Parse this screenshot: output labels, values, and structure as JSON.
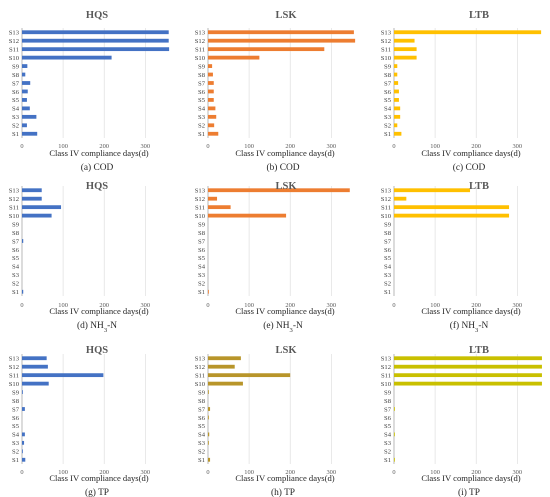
{
  "chart_data": [
    {
      "type": "bar",
      "orientation": "horizontal",
      "title": "HQS",
      "caption": "(a) COD",
      "xlabel": "Class IV compliance days(d)",
      "xlim": [
        0,
        365
      ],
      "xticks": [
        0,
        100,
        200,
        300
      ],
      "grid": true,
      "color": "#4472C4",
      "categories": [
        "S1",
        "S2",
        "S3",
        "S4",
        "S5",
        "S6",
        "S7",
        "S8",
        "S9",
        "S10",
        "S11",
        "S12",
        "S13"
      ],
      "values": [
        37,
        12,
        35,
        19,
        12,
        14,
        20,
        8,
        13,
        218,
        358,
        357,
        357
      ]
    },
    {
      "type": "bar",
      "orientation": "horizontal",
      "title": "LSK",
      "caption": "(b) COD",
      "xlabel": "Class IV compliance days(d)",
      "xlim": [
        0,
        365
      ],
      "xticks": [
        0,
        100,
        200,
        300
      ],
      "grid": true,
      "color": "#ED7D31",
      "categories": [
        "S1",
        "S2",
        "S3",
        "S4",
        "S5",
        "S6",
        "S7",
        "S8",
        "S9",
        "S10",
        "S11",
        "S12",
        "S13"
      ],
      "values": [
        25,
        15,
        20,
        18,
        14,
        14,
        14,
        12,
        10,
        125,
        283,
        358,
        355
      ]
    },
    {
      "type": "bar",
      "orientation": "horizontal",
      "title": "LTB",
      "caption": "(c) COD",
      "xlabel": "Class IV compliance days(d)",
      "xlim": [
        0,
        365
      ],
      "xticks": [
        0,
        100,
        200,
        300
      ],
      "grid": true,
      "color": "#FFC000",
      "categories": [
        "S1",
        "S2",
        "S3",
        "S4",
        "S5",
        "S6",
        "S7",
        "S8",
        "S9",
        "S10",
        "S11",
        "S12",
        "S13"
      ],
      "values": [
        18,
        8,
        15,
        15,
        12,
        12,
        10,
        8,
        8,
        55,
        55,
        50,
        358
      ]
    },
    {
      "type": "bar",
      "orientation": "horizontal",
      "title": "HQS",
      "caption": "(d) NH3-N",
      "caption_text": "(d) NH",
      "caption_sub": "3",
      "caption_tail": "-N",
      "xlabel": "Class IV compliance days(d)",
      "xlim": [
        0,
        365
      ],
      "xticks": [
        0,
        100,
        200,
        300
      ],
      "grid": true,
      "color": "#4472C4",
      "categories": [
        "S1",
        "S2",
        "S3",
        "S4",
        "S5",
        "S6",
        "S7",
        "S8",
        "S9",
        "S10",
        "S11",
        "S12",
        "S13"
      ],
      "values": [
        3,
        0,
        0,
        0,
        0,
        0,
        3,
        0,
        0,
        72,
        95,
        48,
        48
      ]
    },
    {
      "type": "bar",
      "orientation": "horizontal",
      "title": "LSK",
      "caption": "(e) NH3-N",
      "caption_text": "(e) NH",
      "caption_sub": "3",
      "caption_tail": "-N",
      "xlabel": "Class IV compliance days(d)",
      "xlim": [
        0,
        365
      ],
      "xticks": [
        0,
        100,
        200,
        300
      ],
      "grid": true,
      "color": "#ED7D31",
      "categories": [
        "S1",
        "S2",
        "S3",
        "S4",
        "S5",
        "S6",
        "S7",
        "S8",
        "S9",
        "S10",
        "S11",
        "S12",
        "S13"
      ],
      "values": [
        2,
        0,
        0,
        0,
        0,
        0,
        0,
        0,
        0,
        190,
        55,
        22,
        345
      ]
    },
    {
      "type": "bar",
      "orientation": "horizontal",
      "title": "LTB",
      "caption": "(f) NH3-N",
      "caption_text": "(f) NH",
      "caption_sub": "3",
      "caption_tail": "-N",
      "xlabel": "Class IV compliance days(d)",
      "xlim": [
        0,
        365
      ],
      "xticks": [
        0,
        100,
        200,
        300
      ],
      "grid": true,
      "color": "#FFC000",
      "categories": [
        "S1",
        "S2",
        "S3",
        "S4",
        "S5",
        "S6",
        "S7",
        "S8",
        "S9",
        "S10",
        "S11",
        "S12",
        "S13"
      ],
      "values": [
        0,
        0,
        0,
        0,
        0,
        0,
        0,
        0,
        0,
        280,
        280,
        30,
        185
      ]
    },
    {
      "type": "bar",
      "orientation": "horizontal",
      "title": "HQS",
      "caption": "(g) TP",
      "xlabel": "Class IV compliance days(d)",
      "xlim": [
        0,
        365
      ],
      "xticks": [
        0,
        100,
        200,
        300
      ],
      "grid": true,
      "color": "#4472C4",
      "categories": [
        "S1",
        "S2",
        "S3",
        "S4",
        "S5",
        "S6",
        "S7",
        "S8",
        "S9",
        "S10",
        "S11",
        "S12",
        "S13"
      ],
      "values": [
        8,
        2,
        5,
        7,
        0,
        0,
        7,
        0,
        2,
        65,
        198,
        63,
        60
      ]
    },
    {
      "type": "bar",
      "orientation": "horizontal",
      "title": "LSK",
      "caption": "(h) TP",
      "xlabel": "Class IV compliance days(d)",
      "xlim": [
        0,
        365
      ],
      "xticks": [
        0,
        100,
        200,
        300
      ],
      "grid": true,
      "color": "#B8952A",
      "categories": [
        "S1",
        "S2",
        "S3",
        "S4",
        "S5",
        "S6",
        "S7",
        "S8",
        "S9",
        "S10",
        "S11",
        "S12",
        "S13"
      ],
      "values": [
        5,
        0,
        2,
        3,
        0,
        2,
        5,
        0,
        2,
        85,
        200,
        65,
        80
      ]
    },
    {
      "type": "bar",
      "orientation": "horizontal",
      "title": "LTB",
      "caption": "(i) TP",
      "xlabel": "Class IV compliance days(d)",
      "xlim": [
        0,
        365
      ],
      "xticks": [
        0,
        100,
        200,
        300
      ],
      "grid": true,
      "color": "#C9C000",
      "categories": [
        "S1",
        "S2",
        "S3",
        "S4",
        "S5",
        "S6",
        "S7",
        "S8",
        "S9",
        "S10",
        "S11",
        "S12",
        "S13"
      ],
      "values": [
        2,
        0,
        0,
        2,
        0,
        0,
        2,
        0,
        0,
        360,
        360,
        360,
        360
      ]
    }
  ]
}
